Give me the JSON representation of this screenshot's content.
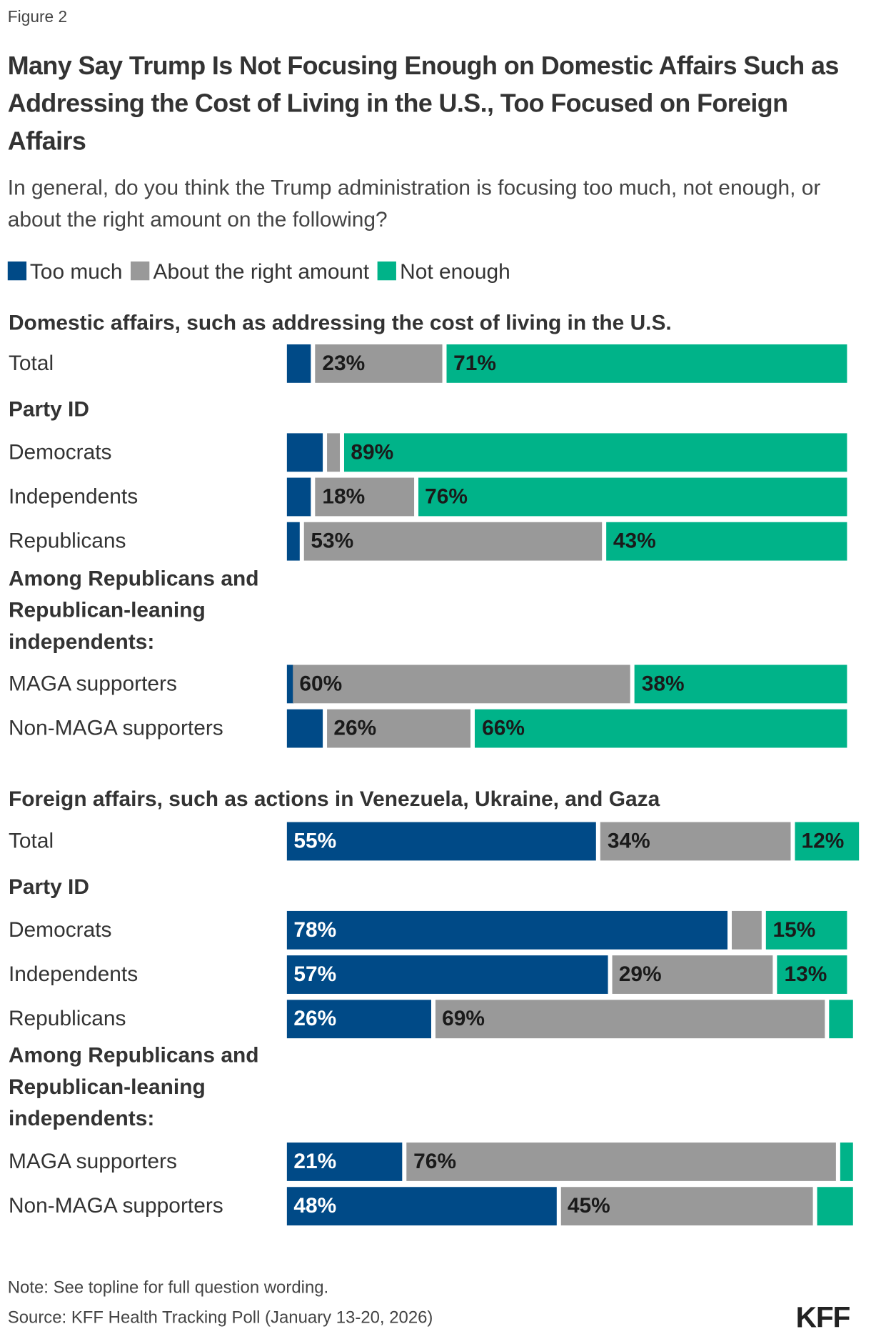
{
  "figure_label": "Figure 2",
  "colors": {
    "too_much": "#004a87",
    "about_right": "#999999",
    "not_enough": "#00b389"
  },
  "chart_data": {
    "type": "bar",
    "orientation": "horizontal-stacked",
    "title": "Many Say Trump Is Not Focusing Enough on Domestic Affairs Such as Addressing the Cost of Living in the U.S., Too Focused on Foreign Affairs",
    "subtitle": "In general, do you think the Trump administration is focusing too much, not enough, or about the right amount on the following?",
    "legend": [
      "Too much",
      "About the right amount",
      "Not enough"
    ],
    "legend_placement": "top-left",
    "unit": "%",
    "panels": [
      {
        "header": "Domestic affairs, such as addressing the cost of living in the U.S.",
        "rows": [
          {
            "label": "Total",
            "values": [
              5,
              23,
              71
            ]
          },
          {
            "group": "Party ID"
          },
          {
            "label": "Democrats",
            "values": [
              7,
              3,
              89
            ]
          },
          {
            "label": "Independents",
            "values": [
              5,
              18,
              76
            ]
          },
          {
            "label": "Republicans",
            "values": [
              3,
              53,
              43
            ]
          },
          {
            "group": "Among Republicans and Republican-leaning independents:"
          },
          {
            "label": "MAGA supporters",
            "values": [
              1,
              60,
              38
            ]
          },
          {
            "label": "Non-MAGA supporters",
            "values": [
              7,
              26,
              66
            ]
          }
        ]
      },
      {
        "header": "Foreign affairs, such as actions in Venezuela, Ukraine, and Gaza",
        "rows": [
          {
            "label": "Total",
            "values": [
              55,
              34,
              12
            ]
          },
          {
            "group": "Party ID"
          },
          {
            "label": "Democrats",
            "values": [
              78,
              6,
              15
            ]
          },
          {
            "label": "Independents",
            "values": [
              57,
              29,
              13
            ]
          },
          {
            "label": "Republicans",
            "values": [
              26,
              69,
              5
            ]
          },
          {
            "group": "Among Republicans and Republican-leaning independents:"
          },
          {
            "label": "MAGA supporters",
            "values": [
              21,
              76,
              3
            ]
          },
          {
            "label": "Non-MAGA supporters",
            "values": [
              48,
              45,
              7
            ]
          }
        ]
      }
    ]
  },
  "note": "Note: See topline for full question wording.",
  "source": "Source: KFF Health Tracking Poll (January 13-20, 2026)",
  "logo": "KFF"
}
